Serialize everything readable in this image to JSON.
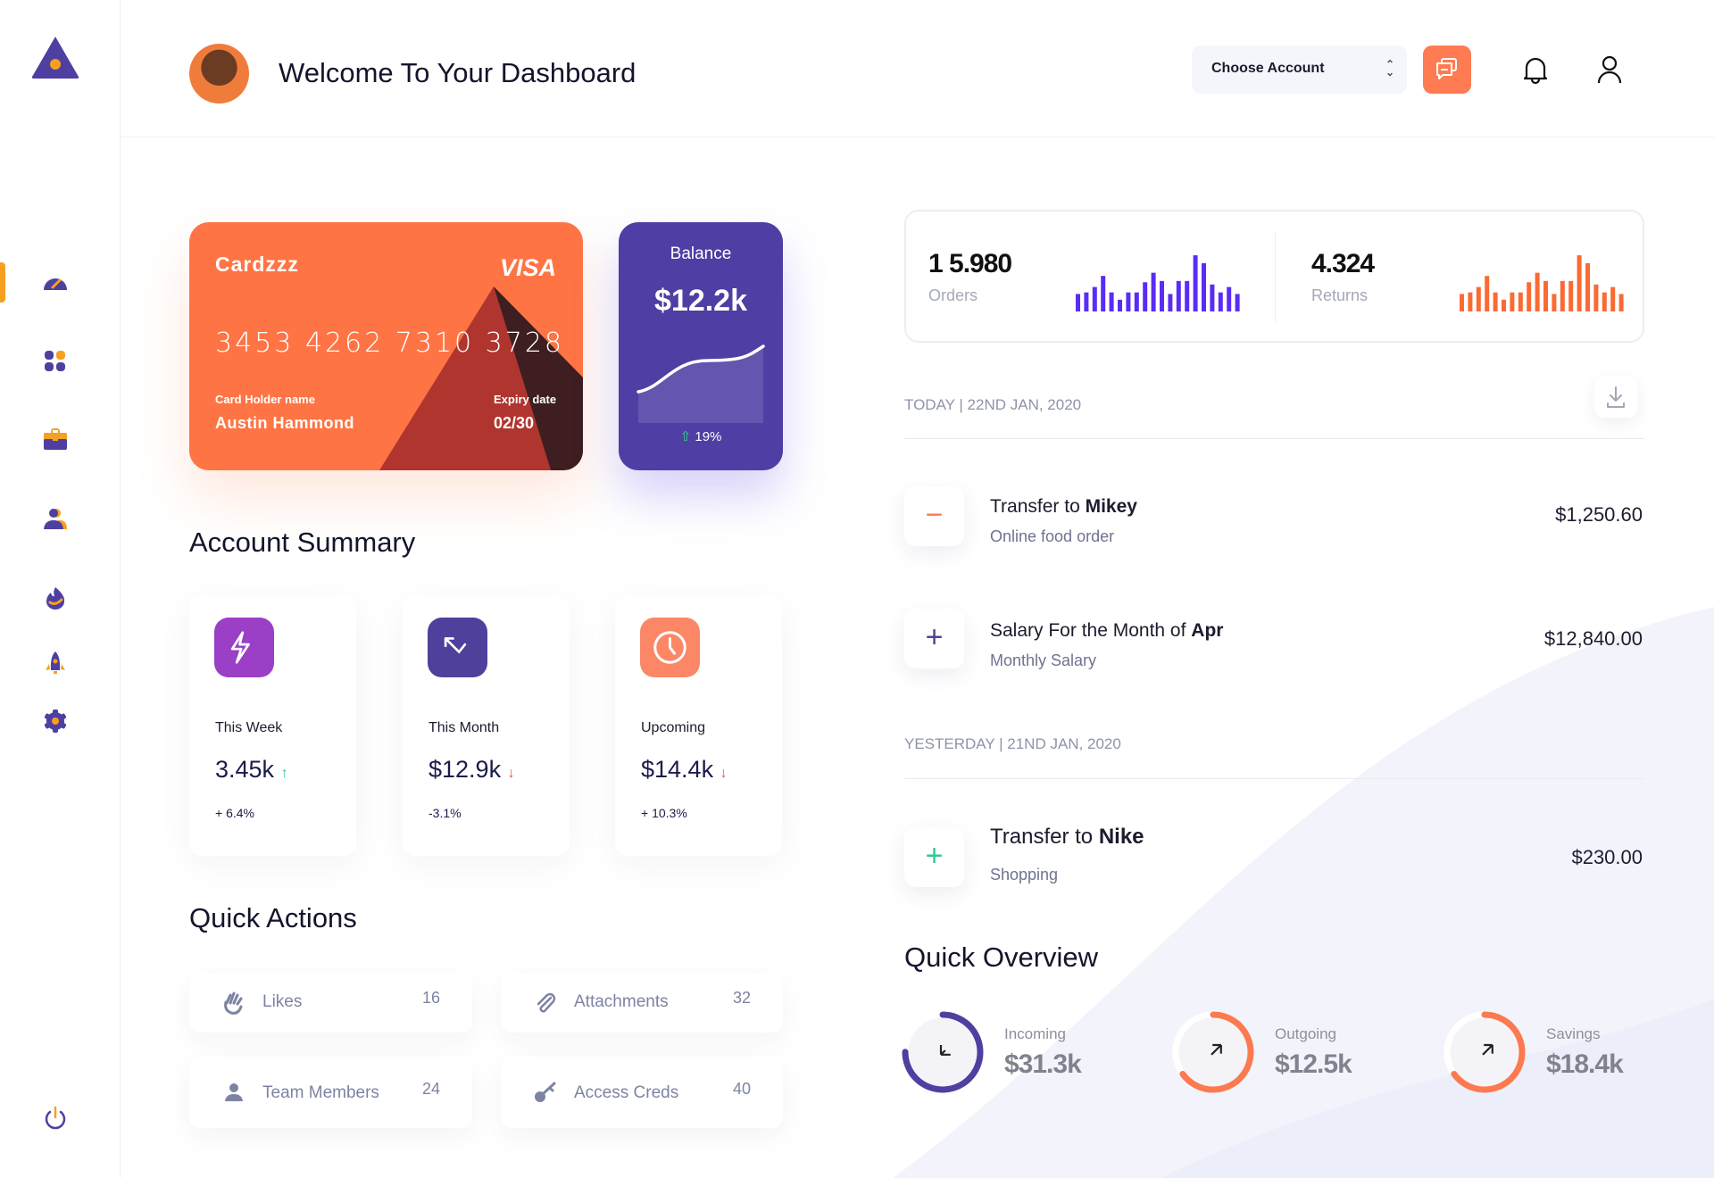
{
  "header": {
    "title": "Welcome To Your Dashboard",
    "account_select": "Choose Account"
  },
  "sidebar": {
    "items": [
      "dashboard-icon",
      "apps-icon",
      "briefcase-icon",
      "users-icon",
      "fire-icon",
      "rocket-icon",
      "settings-icon"
    ],
    "active": 0,
    "logout": "power-icon"
  },
  "card": {
    "brand": "Cardzzz",
    "network": "VISA",
    "number": "3453 4262 7310 3728",
    "holder_label": "Card Holder name",
    "holder": "Austin Hammond",
    "expiry_label": "Expiry date",
    "expiry": "02/30"
  },
  "balance": {
    "label": "Balance",
    "value": "$12.2k",
    "change": "19%"
  },
  "account_summary": {
    "title": "Account Summary",
    "items": [
      {
        "label": "This Week",
        "value": "3.45k",
        "trend": "up",
        "change": "+ 6.4%",
        "color": "#9b3fc6"
      },
      {
        "label": "This Month",
        "value": "$12.9k",
        "trend": "down",
        "change": "-3.1%",
        "color": "#4e409b"
      },
      {
        "label": "Upcoming",
        "value": "$14.4k",
        "trend": "down",
        "change": "+ 10.3%",
        "color": "#fb8766"
      }
    ]
  },
  "quick_actions": {
    "title": "Quick Actions",
    "items": [
      {
        "label": "Likes",
        "count": "16"
      },
      {
        "label": "Attachments",
        "count": "32"
      },
      {
        "label": "Team Members",
        "count": "24"
      },
      {
        "label": "Access Creds",
        "count": "40"
      }
    ]
  },
  "stats": {
    "orders": {
      "value": "1 5.980",
      "label": "Orders",
      "color": "#5b2cf5",
      "bars": [
        55,
        60,
        77,
        112,
        60,
        37,
        60,
        60,
        92,
        122,
        96,
        55,
        96,
        96,
        177,
        152,
        85,
        60,
        77,
        55
      ]
    },
    "returns": {
      "value": "4.324",
      "label": "Returns",
      "color": "#fb6a33",
      "bars": [
        55,
        60,
        77,
        112,
        60,
        37,
        60,
        60,
        92,
        122,
        96,
        55,
        96,
        96,
        177,
        152,
        85,
        60,
        77,
        55
      ]
    }
  },
  "transactions": {
    "today": "TODAY | 22ND JAN, 2020",
    "yesterday": "YESTERDAY | 21ND JAN, 2020",
    "items": [
      {
        "prefix": "Transfer to ",
        "bold": "Mikey",
        "sub": "Online food order",
        "amount": "$1,250.60",
        "sign": "−",
        "color": "#fb7a55"
      },
      {
        "prefix": "Salary For the Month of ",
        "bold": "Apr",
        "sub": "Monthly Salary",
        "amount": "$12,840.00",
        "sign": "+",
        "color": "#4e409b"
      },
      {
        "prefix": "Transfer to ",
        "bold": "Nike",
        "sub": "Shopping",
        "amount": "$230.00",
        "sign": "+",
        "color": "#2ec99a"
      }
    ]
  },
  "quick_overview": {
    "title": "Quick Overview",
    "items": [
      {
        "label": "Incoming",
        "value": "$31.3k",
        "progress": 0.75,
        "color": "#4e3fa1"
      },
      {
        "label": "Outgoing",
        "value": "$12.5k",
        "progress": 0.65,
        "color": "#fb7a4f"
      },
      {
        "label": "Savings",
        "value": "$18.4k",
        "progress": 0.65,
        "color": "#fb7a4f"
      }
    ]
  }
}
